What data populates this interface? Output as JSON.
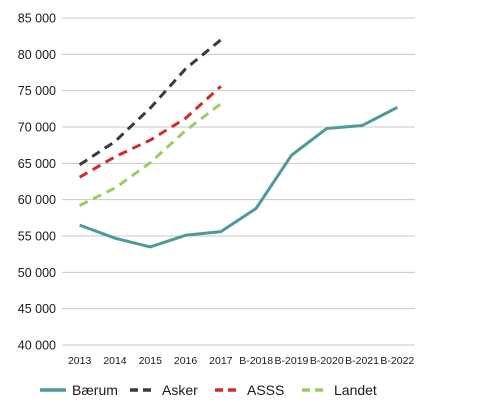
{
  "chart_data": {
    "type": "line",
    "title": "",
    "xlabel": "",
    "ylabel": "",
    "categories": [
      "2013",
      "2014",
      "2015",
      "2016",
      "2017",
      "B-2018",
      "B-2019",
      "B-2020",
      "B-2021",
      "B-2022"
    ],
    "ylim": [
      40000,
      85000
    ],
    "yticks": [
      "40 000",
      "45 000",
      "50 000",
      "55 000",
      "60 000",
      "65 000",
      "70 000",
      "75 000",
      "80 000",
      "85 000"
    ],
    "ytick_values": [
      40000,
      45000,
      50000,
      55000,
      60000,
      65000,
      70000,
      75000,
      80000,
      85000
    ],
    "grid": "horizontal",
    "legend_position": "bottom",
    "series": [
      {
        "name": "Bærum",
        "color": "#4e9a98",
        "style": "solid",
        "values": [
          56500,
          54700,
          53500,
          55100,
          55600,
          58800,
          66100,
          69800,
          70200,
          72700
        ]
      },
      {
        "name": "Asker",
        "color": "#3a3a3a",
        "style": "dashed",
        "values": [
          64800,
          68000,
          72600,
          78000,
          82000,
          null,
          null,
          null,
          null,
          null
        ]
      },
      {
        "name": "ASSS",
        "color": "#d22b2b",
        "style": "dashed",
        "values": [
          63100,
          65900,
          68200,
          71200,
          75600,
          null,
          null,
          null,
          null,
          null
        ]
      },
      {
        "name": "Landet",
        "color": "#9ccc65",
        "style": "dashed",
        "values": [
          59200,
          61600,
          65100,
          69500,
          73200,
          null,
          null,
          null,
          null,
          null
        ]
      }
    ]
  }
}
